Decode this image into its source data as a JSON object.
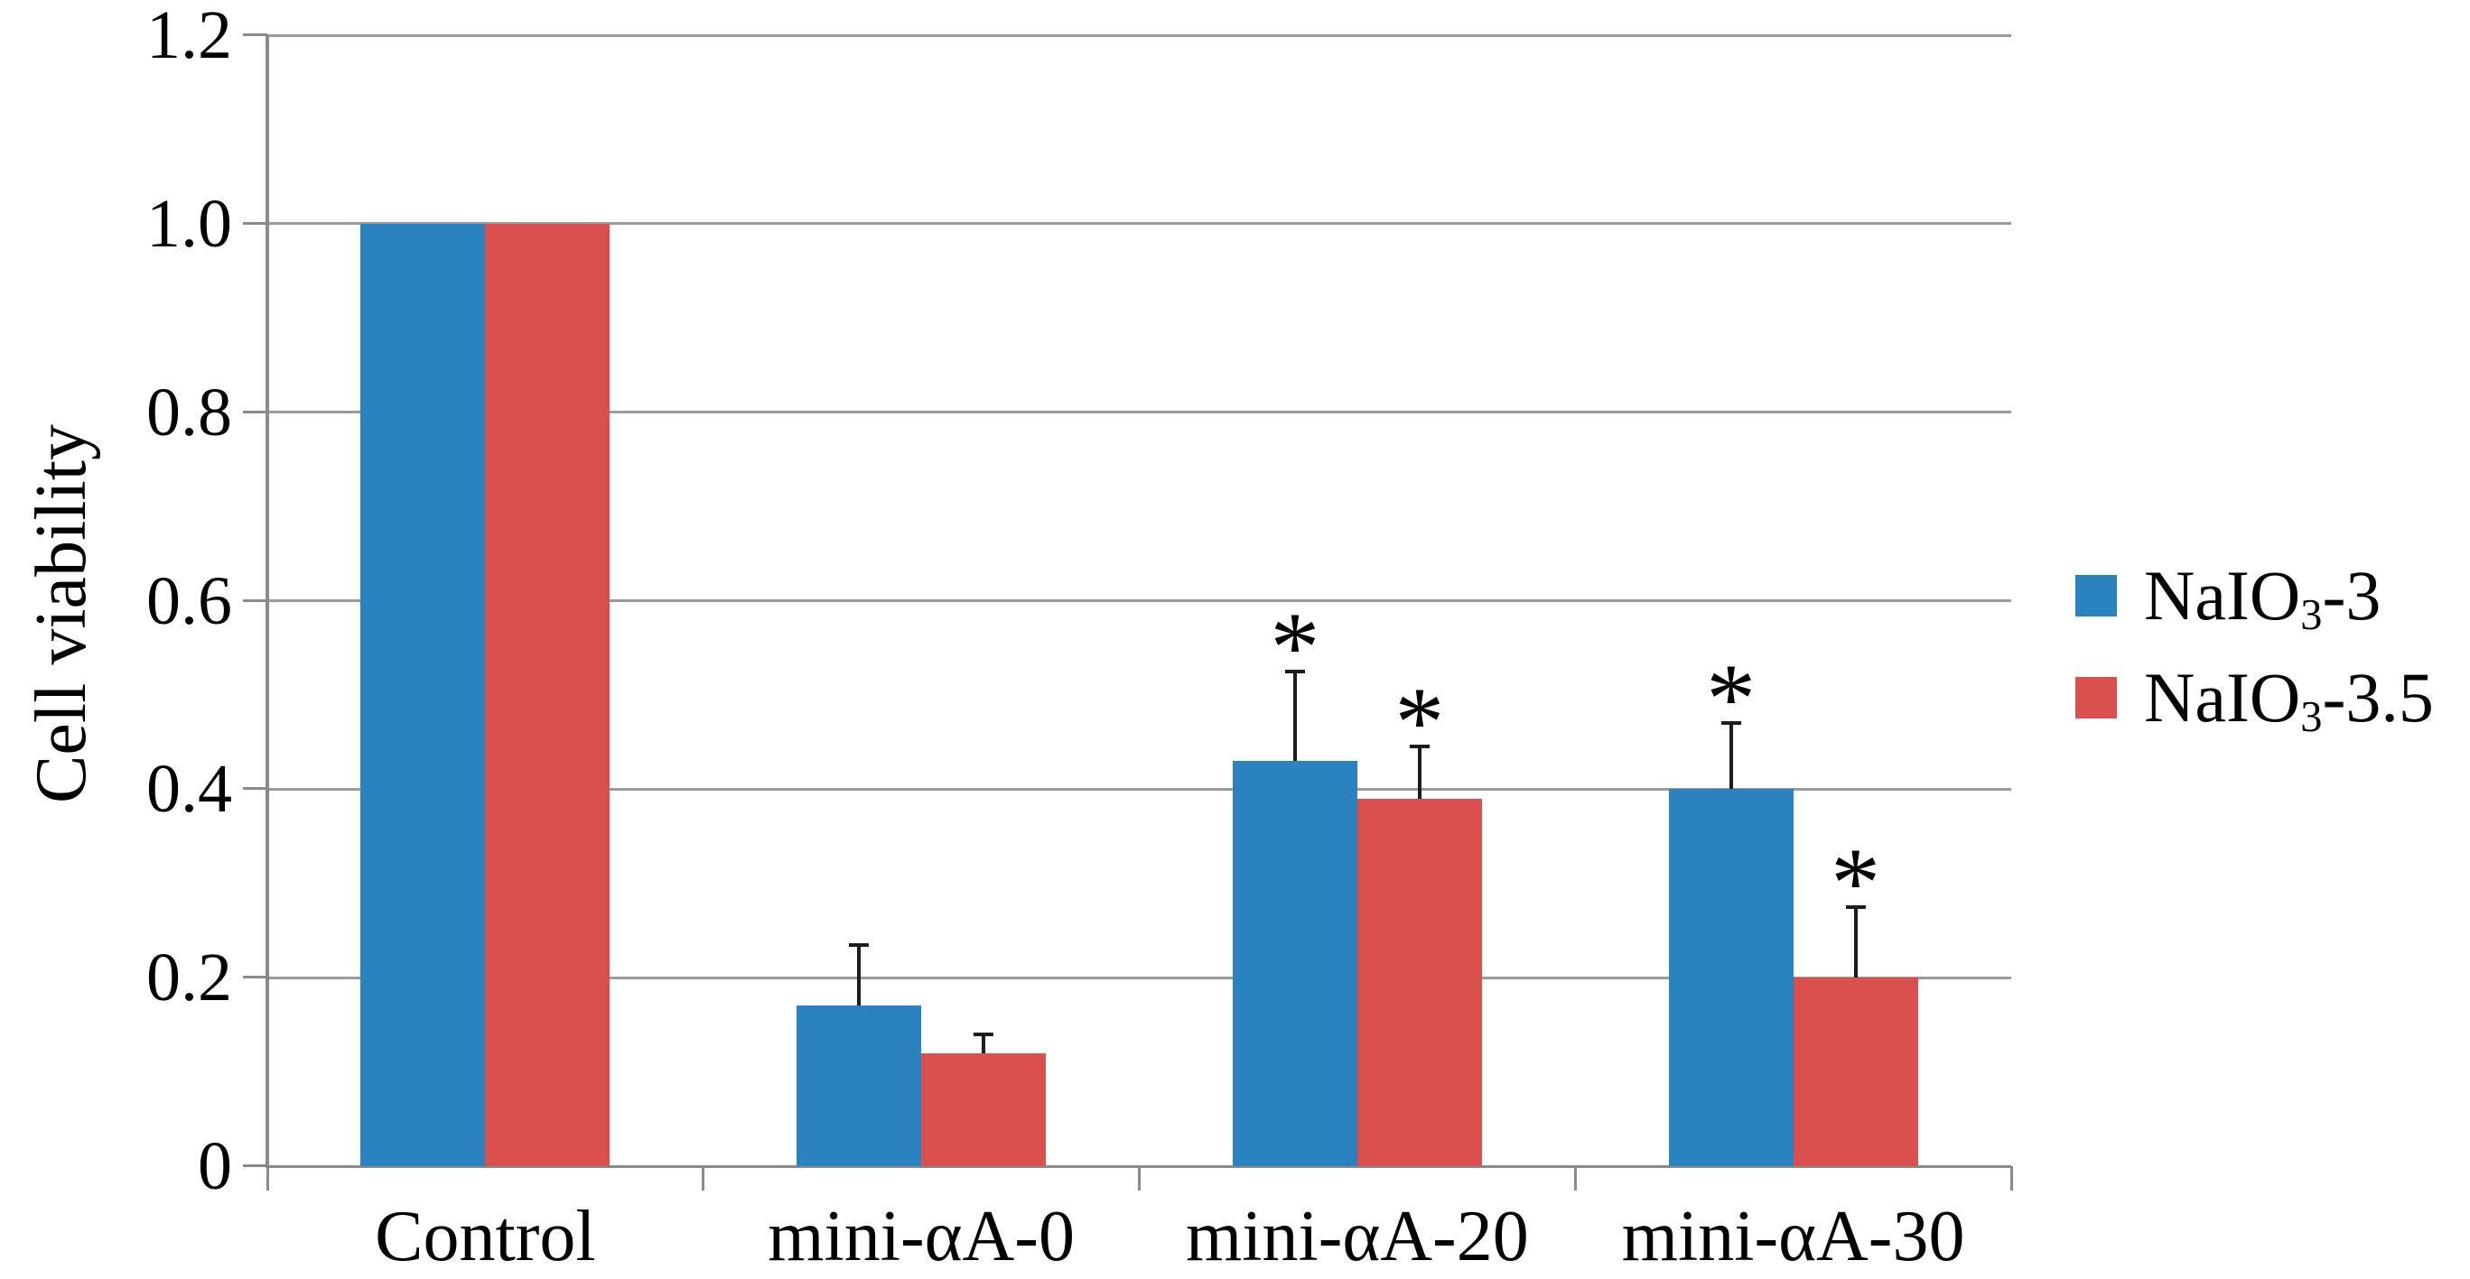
{
  "figure": {
    "background": "#ffffff"
  },
  "y_axis": {
    "title": "Cell viability",
    "tick_labels": [
      "1.2",
      "1.0",
      "0.8",
      "0.6",
      "0.4",
      "0.2",
      "0"
    ],
    "min": 0,
    "max": 1.2,
    "step": 0.2
  },
  "x_axis": {
    "category_labels": [
      "Control",
      "mini-αA-0",
      "mini-αA-20",
      "mini-αA-30"
    ]
  },
  "legend": {
    "items": [
      {
        "label": "NaIO₃-3",
        "prefix": "NaIO",
        "sub": "3",
        "suffix": "-3",
        "color": "#2A82BF"
      },
      {
        "label": "NaIO₃-3.5",
        "prefix": "NaIO",
        "sub": "3",
        "suffix": "-3.5",
        "color": "#D9504E"
      }
    ]
  },
  "significance_marker": "*",
  "chart_data": {
    "type": "bar",
    "title": "",
    "xlabel": "",
    "ylabel": "Cell viability",
    "ylim": [
      0,
      1.2
    ],
    "ytick_step": 0.2,
    "grid": true,
    "legend_position": "right-center",
    "error_bars": "upper only, black caps",
    "categories": [
      "Control",
      "mini-αA-0",
      "mini-αA-20",
      "mini-αA-30"
    ],
    "series": [
      {
        "name": "NaIO₃-3",
        "color": "#2A82BF",
        "values": [
          1.0,
          0.17,
          0.43,
          0.4
        ],
        "errors": [
          0,
          0.065,
          0.095,
          0.07
        ],
        "significant": [
          false,
          false,
          true,
          true
        ]
      },
      {
        "name": "NaIO₃-3.5",
        "color": "#D9504E",
        "values": [
          1.0,
          0.12,
          0.39,
          0.2
        ],
        "errors": [
          0,
          0.02,
          0.055,
          0.075
        ],
        "significant": [
          false,
          false,
          true,
          true
        ]
      }
    ],
    "annotations": "asterisks denote significant difference above error bars of mini-αA-20 and mini-αA-30 bars"
  }
}
